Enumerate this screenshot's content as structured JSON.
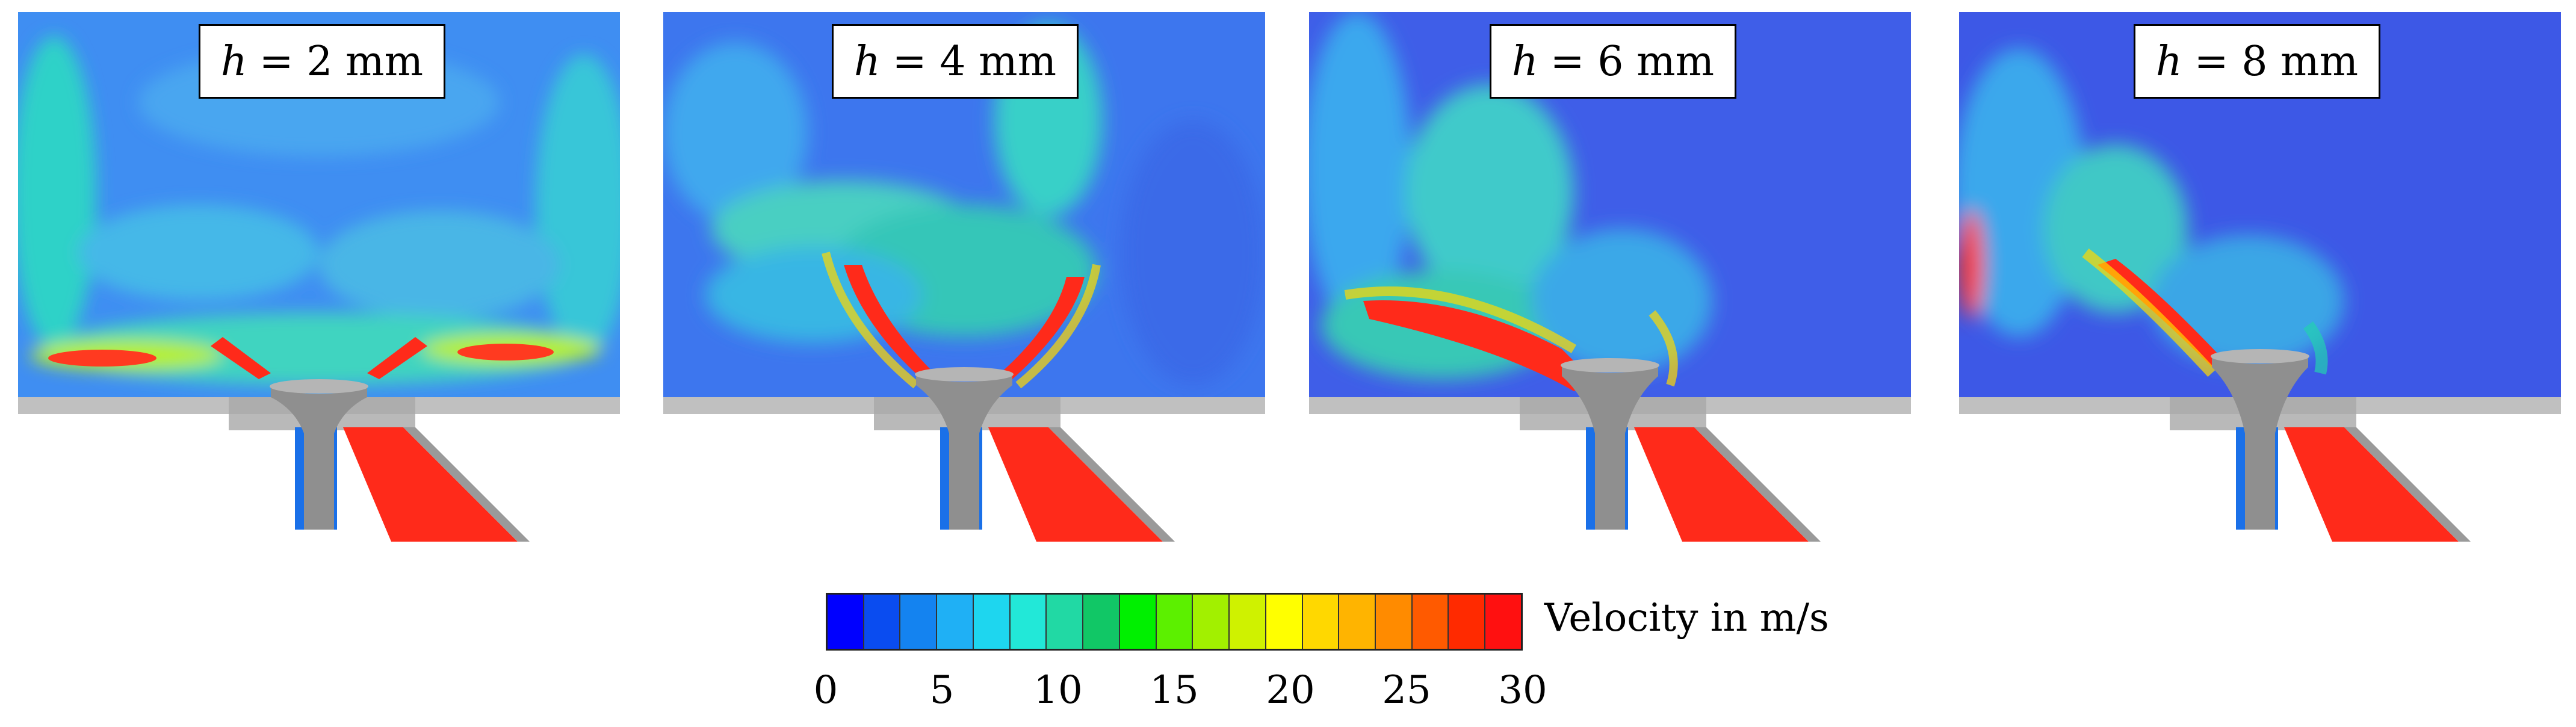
{
  "panels": [
    {
      "label_var": "h",
      "label_rest": "= 2 mm"
    },
    {
      "label_var": "h",
      "label_rest": "= 4 mm"
    },
    {
      "label_var": "h",
      "label_rest": "= 6 mm"
    },
    {
      "label_var": "h",
      "label_rest": "= 8 mm"
    }
  ],
  "colorbar": {
    "title": "Velocity in m/s",
    "ticks": [
      "0",
      "5",
      "10",
      "15",
      "20",
      "25",
      "30"
    ],
    "range": [
      0,
      30
    ],
    "colors": [
      "#0000ff",
      "#0a4cf0",
      "#1483f0",
      "#1fb0f5",
      "#1ed6ef",
      "#22e8d8",
      "#21d9a4",
      "#11c766",
      "#00f000",
      "#5cf000",
      "#a2f000",
      "#cff200",
      "#ffff00",
      "#ffd800",
      "#ffb400",
      "#ff8b00",
      "#ff5a00",
      "#ff2a00",
      "#ff1010"
    ]
  },
  "colors": {
    "background_flow": "#3e7ef0",
    "jet": "#ff2a1a",
    "wall": "#c0c0c0",
    "valve": "#9a9a9a"
  }
}
